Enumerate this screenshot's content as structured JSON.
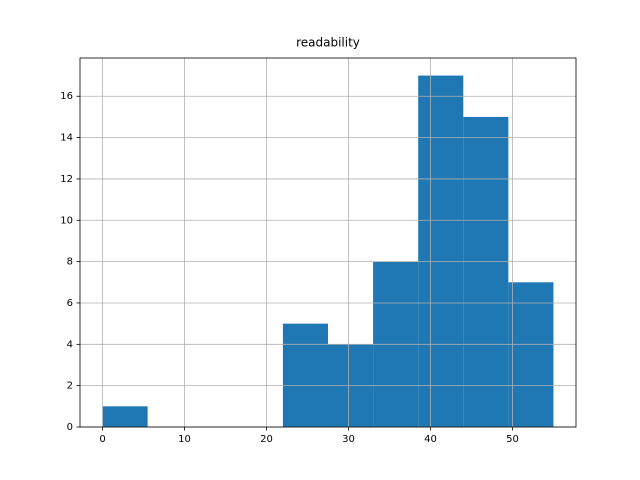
{
  "chart_data": {
    "type": "histogram",
    "title": "readability",
    "bins": [
      0,
      5.5,
      11,
      16.5,
      22,
      27.5,
      33,
      38.5,
      44,
      49.5,
      55
    ],
    "values": [
      1,
      0,
      0,
      0,
      5,
      4,
      8,
      17,
      15,
      7
    ],
    "color": "#1f77b4",
    "xlim": [
      -2.75,
      57.75
    ],
    "xticks": [
      0,
      10,
      20,
      30,
      40,
      50
    ],
    "ylim": [
      0,
      17.85
    ],
    "yticks": [
      0,
      2,
      4,
      6,
      8,
      10,
      12,
      14,
      16
    ],
    "grid": true
  }
}
